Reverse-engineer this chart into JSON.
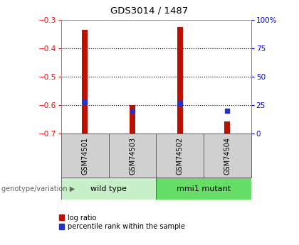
{
  "title": "GDS3014 / 1487",
  "samples": [
    "GSM74501",
    "GSM74503",
    "GSM74502",
    "GSM74504"
  ],
  "bar_bottom": -0.7,
  "bar_tops": [
    -0.335,
    -0.601,
    -0.325,
    -0.658
  ],
  "percentile_values": [
    28,
    20,
    27,
    20
  ],
  "ylim_left": [
    -0.7,
    -0.3
  ],
  "ylim_right": [
    0,
    100
  ],
  "yticks_left": [
    -0.7,
    -0.6,
    -0.5,
    -0.4,
    -0.3
  ],
  "yticks_right": [
    0,
    25,
    50,
    75,
    100
  ],
  "ytick_labels_right": [
    "0",
    "25",
    "50",
    "75",
    "100%"
  ],
  "bar_color": "#bb1100",
  "blue_color": "#2233cc",
  "bar_width": 0.12,
  "legend_red": "log ratio",
  "legend_blue": "percentile rank within the sample",
  "wild_type_color": "#c8f0c8",
  "mmi1_color": "#66dd66",
  "sample_box_color": "#d0d0d0"
}
